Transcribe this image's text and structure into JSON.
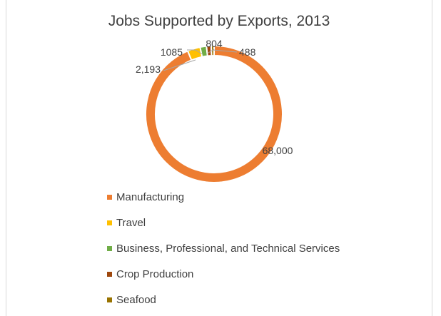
{
  "chart_data": {
    "type": "pie",
    "variant": "doughnut",
    "title": "Jobs Supported by Exports, 2013",
    "categories": [
      "Manufacturing",
      "Travel",
      "Business, Professional, and Technical Services",
      "Crop Production",
      "Seafood"
    ],
    "values": [
      68000,
      2193,
      1085,
      804,
      488
    ],
    "data_labels": [
      "68,000",
      "2,193",
      "1085",
      "804",
      "488"
    ],
    "colors": [
      "#ED7D31",
      "#FFC000",
      "#70AD47",
      "#9E480E",
      "#997300"
    ],
    "legend_position": "bottom-left",
    "start_angle_deg": 0
  }
}
